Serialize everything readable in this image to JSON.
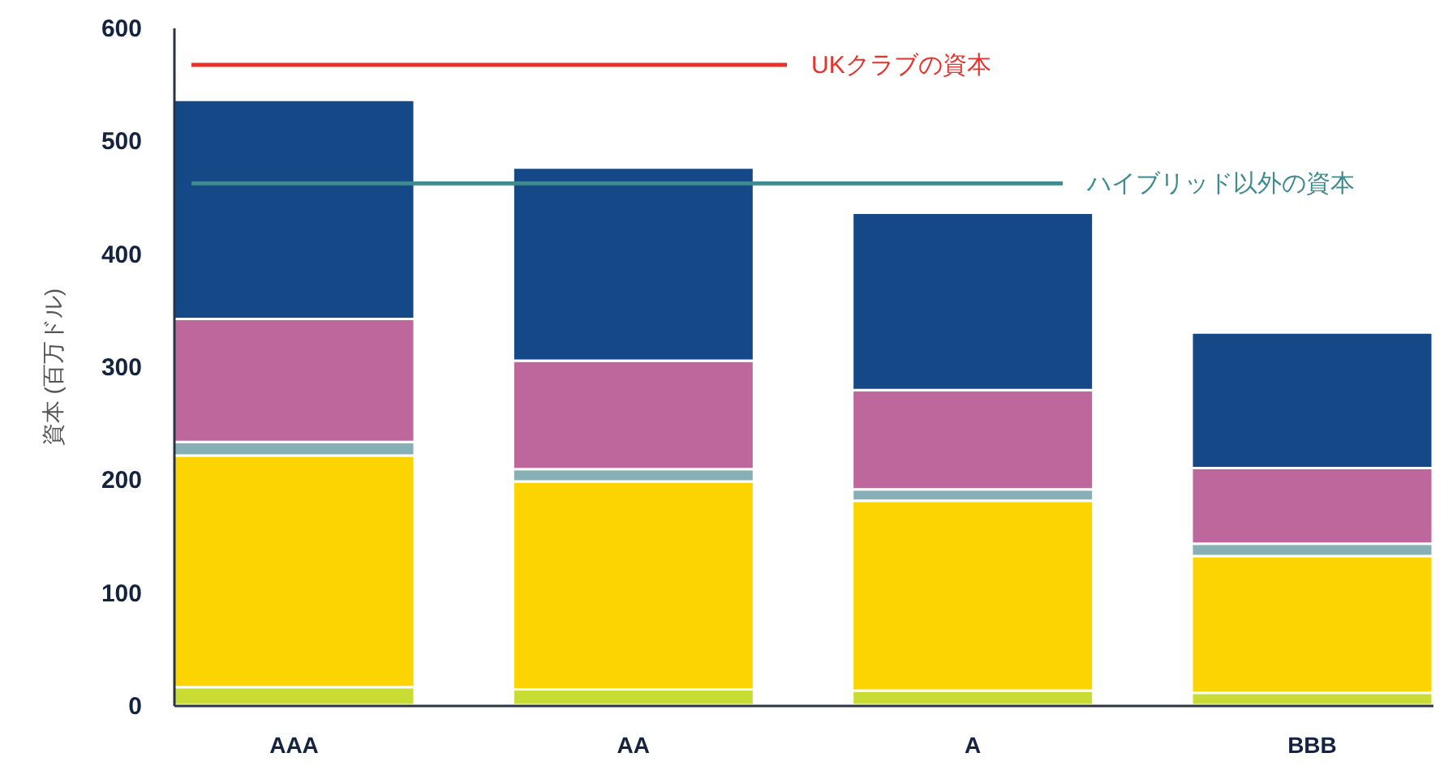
{
  "chart_data": {
    "type": "bar",
    "stacked": true,
    "ylabel": "資本 (百万ドル)",
    "categories": [
      "AAA",
      "AA",
      "A",
      "BBB"
    ],
    "series": [
      {
        "color": "#c9dc33",
        "values": [
          16,
          14,
          13,
          11
        ]
      },
      {
        "color": "#fcd401",
        "values": [
          205,
          184,
          168,
          121
        ]
      },
      {
        "color": "#87b0b6",
        "values": [
          12,
          11,
          10,
          11
        ]
      },
      {
        "color": "#be679c",
        "values": [
          109,
          96,
          88,
          67
        ]
      },
      {
        "color": "#154886",
        "values": [
          194,
          171,
          157,
          120
        ]
      }
    ],
    "ylim": [
      0,
      600
    ],
    "yticks": [
      0,
      100,
      200,
      300,
      400,
      500,
      600
    ],
    "grid": false,
    "ref_lines": [
      {
        "axis": "y",
        "value": 567,
        "label": "UKクラブの資本",
        "color": "#e8312a"
      },
      {
        "axis": "y",
        "value": 462,
        "label": "ハイブリッド以外の資本",
        "color": "#3d8a8f"
      }
    ]
  }
}
